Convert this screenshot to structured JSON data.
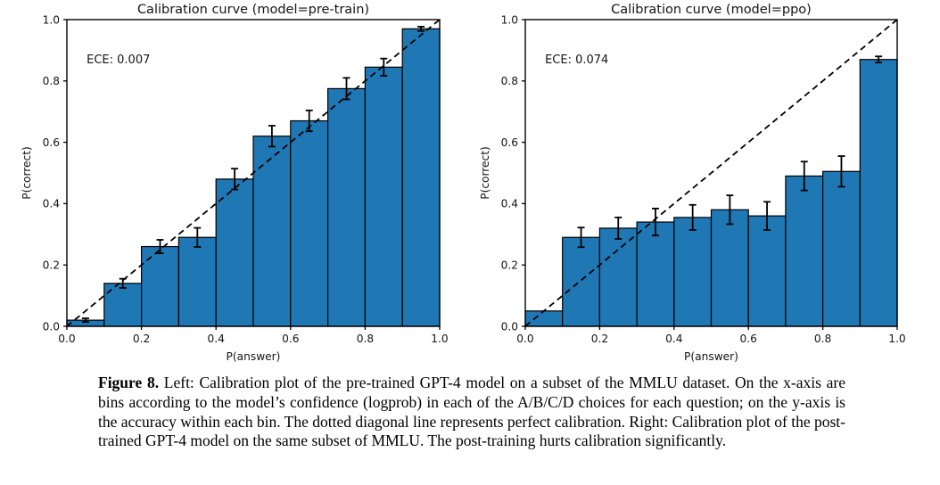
{
  "figure": {
    "caption": {
      "label": "Figure 8.",
      "text": "Left: Calibration plot of the pre-trained GPT-4 model on a subset of the MMLU dataset. On the x-axis are bins according to the model’s confidence (logprob) in each of the A/B/C/D choices for each question; on the y-axis is the accuracy within each bin. The dotted diagonal line represents perfect calibration. Right: Calibration plot of the post-trained GPT-4 model on the same subset of MMLU. The post-training hurts calibration significantly."
    }
  },
  "chart_data": [
    {
      "type": "bar",
      "title": "Calibration curve (model=pre-train)",
      "annotation": "ECE: 0.007",
      "xlabel": "P(answer)",
      "ylabel": "P(correct)",
      "xlim": [
        0.0,
        1.0
      ],
      "ylim": [
        0.0,
        1.0
      ],
      "xticks": [
        0.0,
        0.2,
        0.4,
        0.6,
        0.8,
        1.0
      ],
      "yticks": [
        0.0,
        0.2,
        0.4,
        0.6,
        0.8,
        1.0
      ],
      "bin_edges": [
        0.0,
        0.1,
        0.2,
        0.3,
        0.4,
        0.5,
        0.6,
        0.7,
        0.8,
        0.9,
        1.0
      ],
      "values": [
        0.02,
        0.14,
        0.26,
        0.29,
        0.48,
        0.62,
        0.67,
        0.775,
        0.845,
        0.97
      ],
      "errors": [
        0.006,
        0.015,
        0.022,
        0.031,
        0.034,
        0.034,
        0.034,
        0.035,
        0.028,
        0.007
      ],
      "diagonal": true,
      "grid": false,
      "legend": null,
      "bar_color": "#1f77b4",
      "edge_color": "#000000"
    },
    {
      "type": "bar",
      "title": "Calibration curve (model=ppo)",
      "annotation": "ECE: 0.074",
      "xlabel": "P(answer)",
      "ylabel": "P(correct)",
      "xlim": [
        0.0,
        1.0
      ],
      "ylim": [
        0.0,
        1.0
      ],
      "xticks": [
        0.0,
        0.2,
        0.4,
        0.6,
        0.8,
        1.0
      ],
      "yticks": [
        0.0,
        0.2,
        0.4,
        0.6,
        0.8,
        1.0
      ],
      "bin_edges": [
        0.0,
        0.1,
        0.2,
        0.3,
        0.4,
        0.5,
        0.6,
        0.7,
        0.8,
        0.9,
        1.0
      ],
      "values": [
        0.05,
        0.29,
        0.32,
        0.34,
        0.355,
        0.38,
        0.36,
        0.49,
        0.505,
        0.87
      ],
      "errors": [
        0,
        0.032,
        0.035,
        0.044,
        0.041,
        0.047,
        0.046,
        0.047,
        0.05,
        0.01
      ],
      "diagonal": true,
      "grid": false,
      "legend": null,
      "bar_color": "#1f77b4",
      "edge_color": "#000000"
    }
  ]
}
